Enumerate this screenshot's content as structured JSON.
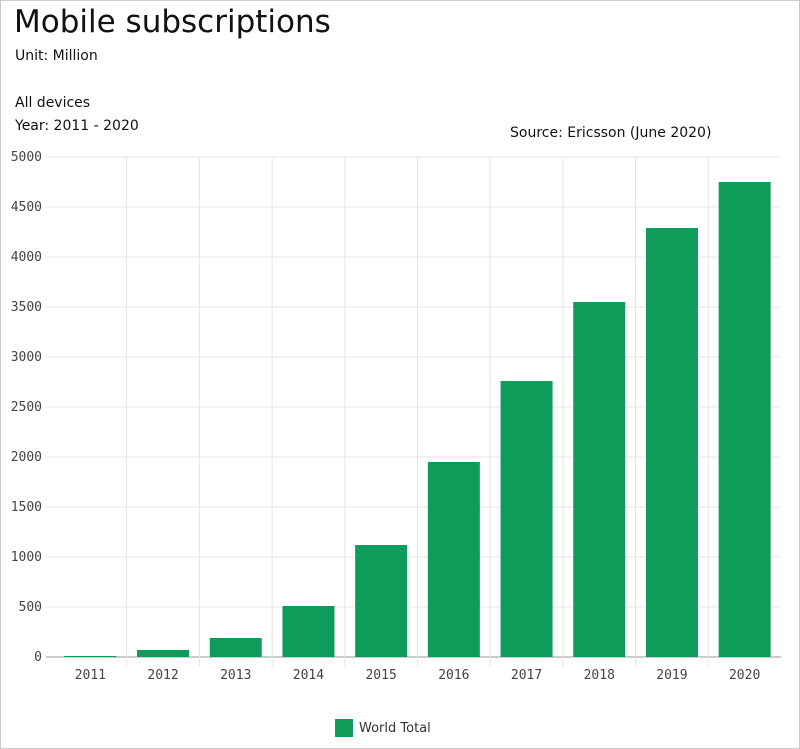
{
  "header": {
    "title": "Mobile subscriptions",
    "unit": "Unit: Million",
    "filter_devices": "All devices",
    "filter_years": "Year: 2011 - 2020",
    "source": "Source: Ericsson (June 2020)"
  },
  "chart_data": {
    "type": "bar",
    "title": "Mobile subscriptions",
    "xlabel": "",
    "ylabel": "",
    "categories": [
      "2011",
      "2012",
      "2013",
      "2014",
      "2015",
      "2016",
      "2017",
      "2018",
      "2019",
      "2020"
    ],
    "series": [
      {
        "name": "World Total",
        "values": [
          10,
          70,
          190,
          510,
          1120,
          1950,
          2760,
          3550,
          4290,
          4750
        ],
        "color": "#0f9b5a"
      }
    ],
    "ylim": [
      0,
      5000
    ],
    "yticks": [
      "0",
      "500",
      "1000",
      "1500",
      "2000",
      "2500",
      "3000",
      "3500",
      "4000",
      "4500",
      "5000"
    ],
    "grid": true,
    "legend": "bottom"
  }
}
